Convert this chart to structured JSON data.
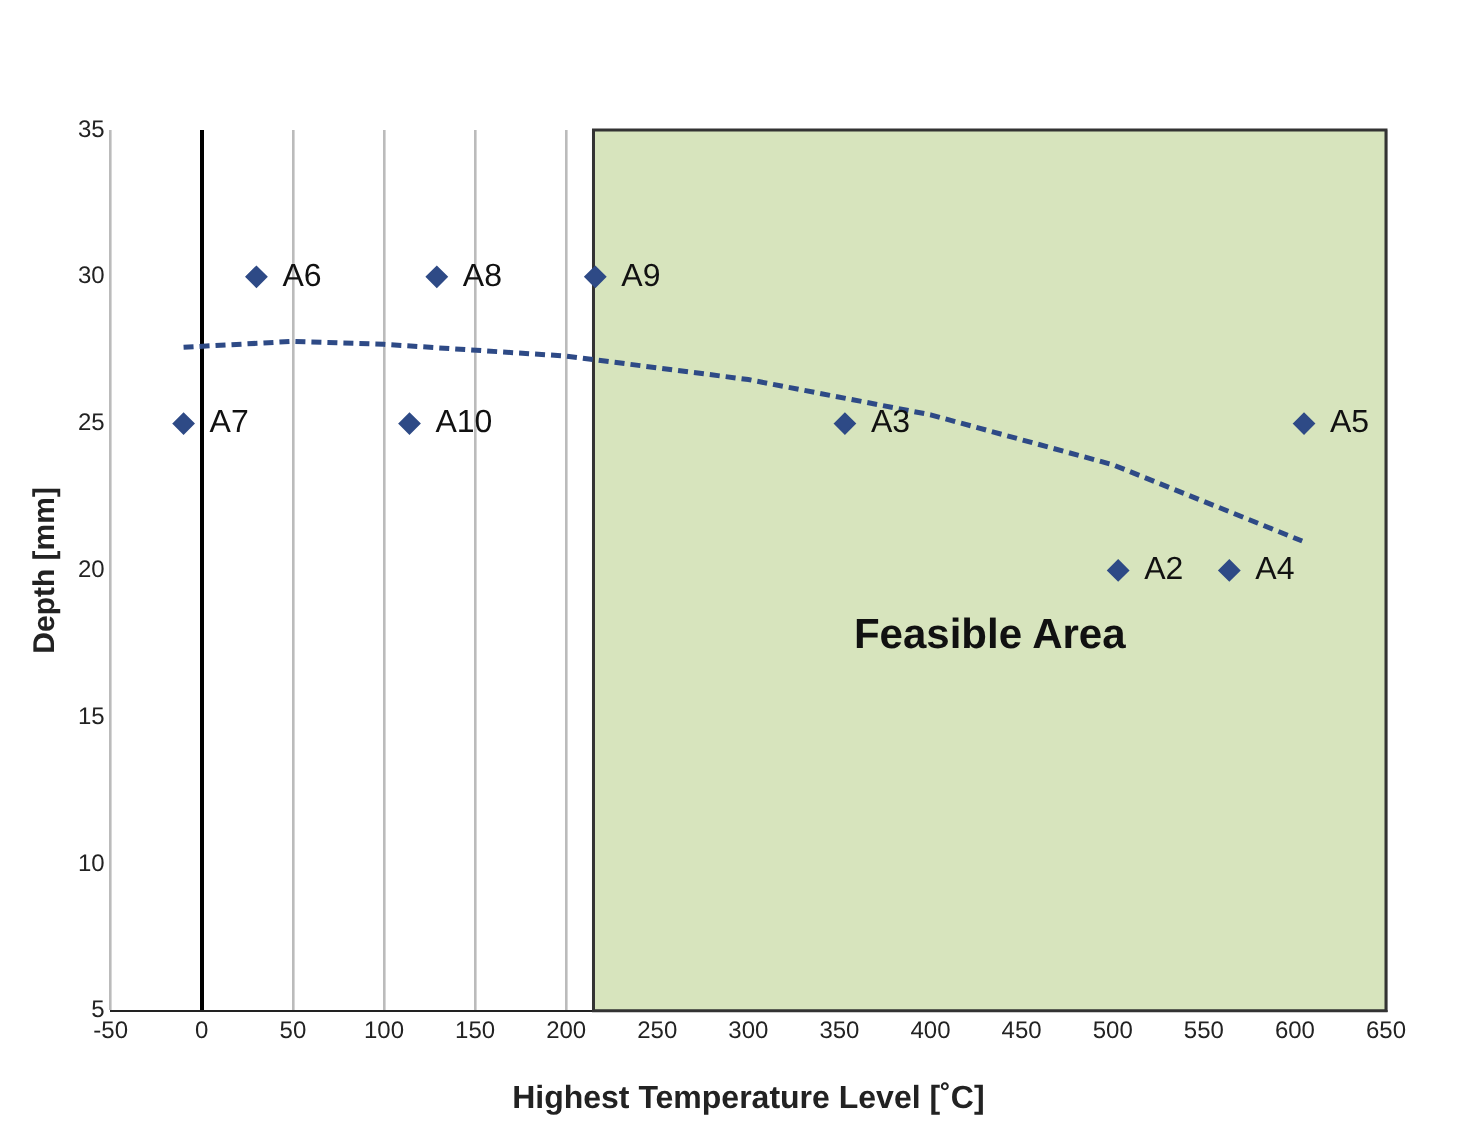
{
  "chart_data": {
    "type": "scatter",
    "xlabel": "Highest Temperature Level [˚C]",
    "ylabel": "Depth [mm]",
    "xlim": [
      -50,
      650
    ],
    "xticks": [
      -50,
      0,
      50,
      100,
      150,
      200,
      250,
      300,
      350,
      400,
      450,
      500,
      550,
      600,
      650
    ],
    "ylim": [
      5,
      35
    ],
    "yticks": [
      5,
      10,
      15,
      20,
      25,
      30,
      35
    ],
    "grid": "x",
    "legend": false,
    "marker": "diamond",
    "series": [
      {
        "color": "#2e4a86",
        "x": [
          -10,
          30,
          129,
          114,
          216,
          353,
          605,
          503,
          564
        ],
        "values": [
          25,
          30,
          30,
          25,
          30,
          25,
          25,
          20,
          20
        ]
      },
      {
        "type": "line",
        "line_style": "dashed",
        "marker": "none",
        "color": "#2e4a86",
        "x": [
          -10,
          50,
          100,
          200,
          300,
          400,
          500,
          604
        ],
        "values": [
          27.6,
          27.8,
          27.7,
          27.3,
          26.5,
          25.3,
          23.6,
          21.0
        ]
      }
    ],
    "bands": [
      {
        "axis": "x",
        "from": 215,
        "to": 650,
        "label": "Feasible Area",
        "color": "#d7e4bd"
      }
    ],
    "annotations": [
      {
        "text": "A7",
        "x": -10,
        "y": 25
      },
      {
        "text": "A6",
        "x": 30,
        "y": 30
      },
      {
        "text": "A8",
        "x": 129,
        "y": 30
      },
      {
        "text": "A10",
        "x": 114,
        "y": 25
      },
      {
        "text": "A9",
        "x": 216,
        "y": 30
      },
      {
        "text": "A3",
        "x": 353,
        "y": 25
      },
      {
        "text": "A5",
        "x": 605,
        "y": 25
      },
      {
        "text": "A2",
        "x": 503,
        "y": 20
      },
      {
        "text": "A4",
        "x": 564,
        "y": 20
      }
    ]
  }
}
